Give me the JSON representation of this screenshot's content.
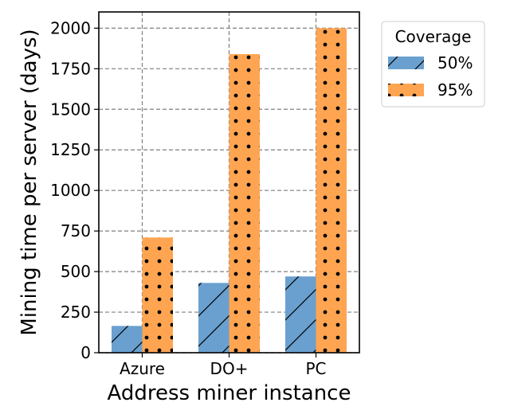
{
  "chart_data": {
    "type": "bar",
    "title": "",
    "xlabel": "Address miner instance",
    "ylabel": "Mining time per server (days)",
    "categories": [
      "Azure",
      "DO+",
      "PC"
    ],
    "ylim": [
      0,
      2100
    ],
    "yticks": [
      0,
      250,
      500,
      750,
      1000,
      1250,
      1500,
      1750,
      2000
    ],
    "grid": true,
    "legend": {
      "title": "Coverage",
      "placement": "outside-top-right"
    },
    "series": [
      {
        "name": "50%",
        "values": [
          165,
          430,
          470
        ],
        "color": "#6aa0cf",
        "pattern": "diagonal-hatch"
      },
      {
        "name": "95%",
        "values": [
          710,
          1840,
          2000
        ],
        "color": "#ffa552",
        "pattern": "dots"
      }
    ]
  }
}
